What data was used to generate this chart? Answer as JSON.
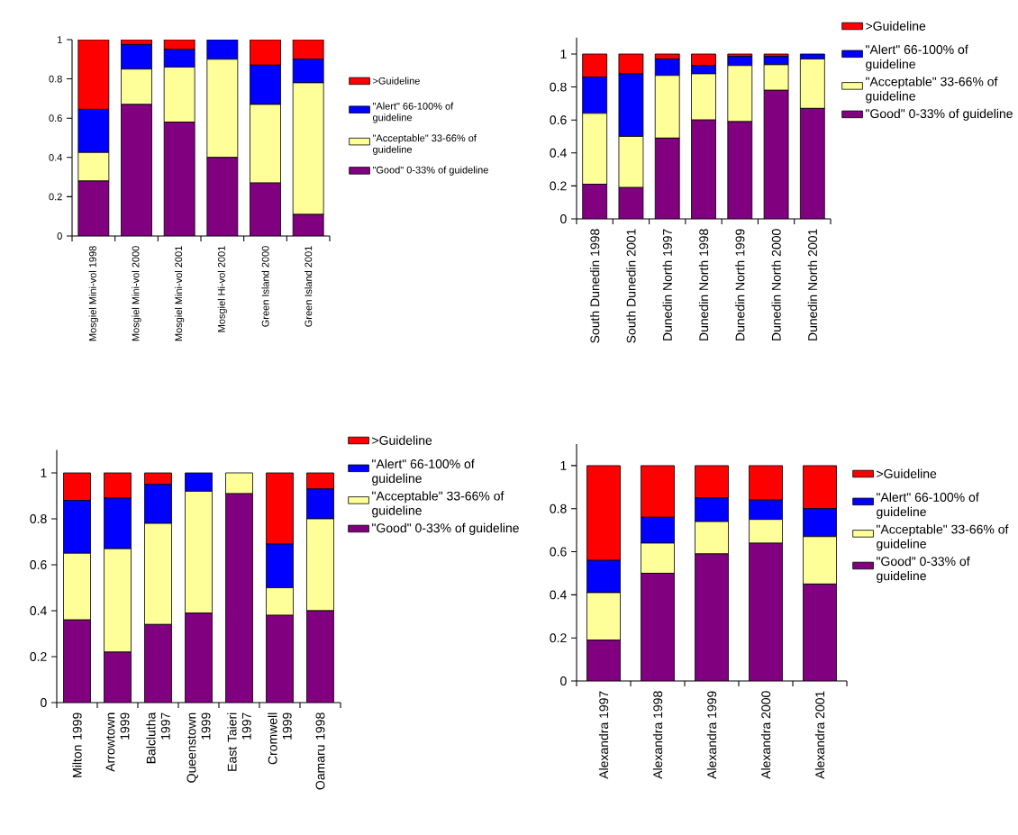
{
  "chart_data": [
    {
      "type": "bar",
      "stacked": true,
      "categories": [
        "Mosgiel Mini-vol 1998",
        "Mosgiel Mini-vol 2000",
        "Mosgiel Mini-vol 2001",
        "Mosgiel Hi-vol 2001",
        "Green Island 2000",
        "Green Island 2001"
      ],
      "series": [
        {
          "name": "\"Good\" 0-33% of guideline",
          "color": "#800080",
          "values": [
            0.28,
            0.67,
            0.58,
            0.4,
            0.27,
            0.11
          ]
        },
        {
          "name": "\"Acceptable\" 33-66% of guideline",
          "color": "#ffff99",
          "values": [
            0.145,
            0.18,
            0.28,
            0.5,
            0.4,
            0.67
          ]
        },
        {
          "name": "\"Alert\" 66-100% of guideline",
          "color": "#0000ff",
          "values": [
            0.22,
            0.125,
            0.09,
            0.1,
            0.2,
            0.12
          ]
        },
        {
          "name": ">Guideline",
          "color": "#ff0000",
          "values": [
            0.355,
            0.025,
            0.05,
            0,
            0.13,
            0.1
          ]
        }
      ],
      "ylim": [
        0,
        1
      ],
      "yticks": [
        0,
        0.2,
        0.4,
        0.6,
        0.8,
        1
      ],
      "legend": "right"
    },
    {
      "type": "bar",
      "stacked": true,
      "categories": [
        "South Dunedin 1998",
        "South Dunedin 2001",
        "Dunedin North 1997",
        "Dunedin North 1998",
        "Dunedin North 1999",
        "Dunedin North 2000",
        "Dunedin North 2001"
      ],
      "series": [
        {
          "name": "\"Good\" 0-33% of guideline",
          "color": "#800080",
          "values": [
            0.21,
            0.19,
            0.49,
            0.6,
            0.59,
            0.78,
            0.67
          ]
        },
        {
          "name": "\"Acceptable\" 33-66% of guideline",
          "color": "#ffff99",
          "values": [
            0.43,
            0.31,
            0.38,
            0.28,
            0.34,
            0.155,
            0.3
          ]
        },
        {
          "name": "\"Alert\" 66-100% of guideline",
          "color": "#0000ff",
          "values": [
            0.22,
            0.38,
            0.1,
            0.05,
            0.055,
            0.05,
            0.03
          ]
        },
        {
          "name": ">Guideline",
          "color": "#ff0000",
          "values": [
            0.14,
            0.12,
            0.03,
            0.07,
            0.015,
            0.015,
            0
          ]
        }
      ],
      "ylim": [
        0,
        1.1
      ],
      "yticks": [
        0,
        0.2,
        0.4,
        0.6,
        0.8,
        1
      ],
      "legend": "right"
    },
    {
      "type": "bar",
      "stacked": true,
      "categories": [
        "Milton 1999",
        "Arrowtown 1999",
        "Balclutha 1997",
        "Queenstown 1999",
        "East Taieri 1997",
        "Cromwell 1999",
        "Oamaru 1998"
      ],
      "series": [
        {
          "name": "\"Good\" 0-33% of guideline",
          "color": "#800080",
          "values": [
            0.36,
            0.22,
            0.34,
            0.39,
            0.91,
            0.38,
            0.4
          ]
        },
        {
          "name": "\"Acceptable\" 33-66% of guideline",
          "color": "#ffff99",
          "values": [
            0.29,
            0.45,
            0.44,
            0.53,
            0.09,
            0.12,
            0.4
          ]
        },
        {
          "name": "\"Alert\" 66-100% of guideline",
          "color": "#0000ff",
          "values": [
            0.23,
            0.22,
            0.17,
            0.08,
            0,
            0.19,
            0.13
          ]
        },
        {
          "name": ">Guideline",
          "color": "#ff0000",
          "values": [
            0.12,
            0.11,
            0.05,
            0,
            0,
            0.31,
            0.07
          ]
        }
      ],
      "ylim": [
        0,
        1.1
      ],
      "yticks": [
        0,
        0.2,
        0.4,
        0.6,
        0.8,
        1
      ],
      "legend": "right"
    },
    {
      "type": "bar",
      "stacked": true,
      "categories": [
        "Alexandra 1997",
        "Alexandra 1998",
        "Alexandra 1999",
        "Alexandra 2000",
        "Alexandra 2001"
      ],
      "series": [
        {
          "name": "\"Good\" 0-33% of guideline",
          "color": "#800080",
          "values": [
            0.19,
            0.5,
            0.59,
            0.64,
            0.45
          ]
        },
        {
          "name": "\"Acceptable\" 33-66% of guideline",
          "color": "#ffff99",
          "values": [
            0.22,
            0.14,
            0.15,
            0.11,
            0.22
          ]
        },
        {
          "name": "\"Alert\" 66-100% of guideline",
          "color": "#0000ff",
          "values": [
            0.15,
            0.12,
            0.11,
            0.09,
            0.13
          ]
        },
        {
          "name": ">Guideline",
          "color": "#ff0000",
          "values": [
            0.44,
            0.24,
            0.15,
            0.16,
            0.2
          ]
        }
      ],
      "ylim": [
        0,
        1.1
      ],
      "yticks": [
        0,
        0.2,
        0.4,
        0.6,
        0.8,
        1
      ],
      "legend": "right"
    }
  ]
}
